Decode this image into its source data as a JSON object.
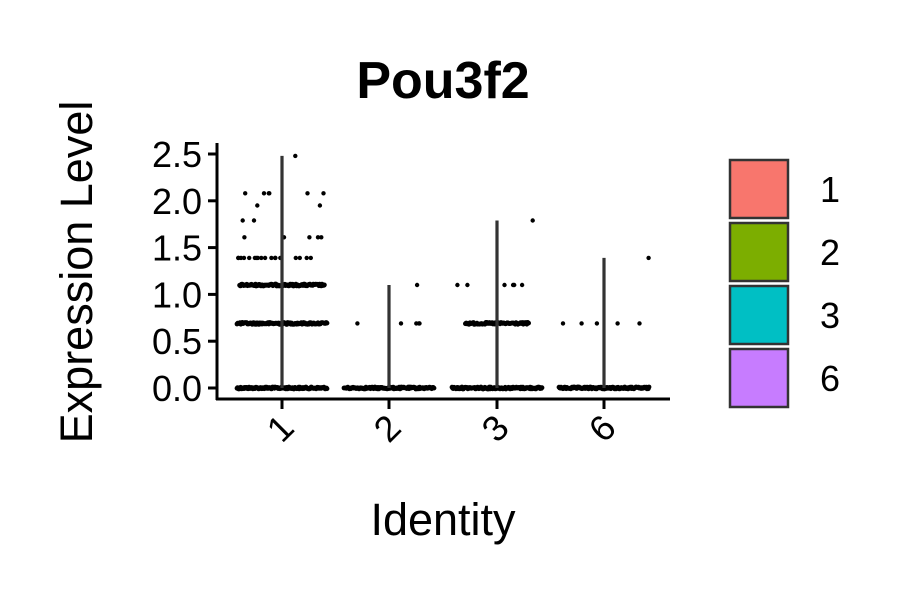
{
  "chart_data": {
    "type": "violin",
    "title": "Pou3f2",
    "xlabel": "Identity",
    "ylabel": "Expression Level",
    "categories": [
      "1",
      "2",
      "3",
      "6"
    ],
    "yticks": [
      "0.0",
      "0.5",
      "1.0",
      "1.5",
      "2.0",
      "2.5"
    ],
    "ylim": [
      0,
      2.5
    ],
    "legend": {
      "placement": "right",
      "entries": [
        {
          "label": "1",
          "color": "#F8766D"
        },
        {
          "label": "2",
          "color": "#7CAE00"
        },
        {
          "label": "3",
          "color": "#00BFC4"
        },
        {
          "label": "6",
          "color": "#C77CFF"
        }
      ]
    },
    "series": [
      {
        "category": "1",
        "max": 2.48,
        "levels": [
          {
            "y": 0.0,
            "points": 50
          },
          {
            "y": 0.69,
            "points": 40
          },
          {
            "y": 1.1,
            "points": 36
          },
          {
            "y": 1.39,
            "points": 18
          },
          {
            "y": 1.61,
            "points": 5
          },
          {
            "y": 1.79,
            "points": 2
          },
          {
            "y": 1.95,
            "points": 2
          },
          {
            "y": 2.08,
            "points": 6
          },
          {
            "y": 2.48,
            "points": 1
          }
        ]
      },
      {
        "category": "2",
        "max": 1.1,
        "levels": [
          {
            "y": 0.0,
            "points": 40
          },
          {
            "y": 0.69,
            "points": 5
          },
          {
            "y": 1.1,
            "points": 1
          }
        ]
      },
      {
        "category": "3",
        "max": 1.79,
        "levels": [
          {
            "y": 0.0,
            "points": 46
          },
          {
            "y": 0.69,
            "points": 24
          },
          {
            "y": 1.1,
            "points": 6
          },
          {
            "y": 1.79,
            "points": 1
          }
        ]
      },
      {
        "category": "6",
        "max": 1.39,
        "levels": [
          {
            "y": 0.0,
            "points": 46
          },
          {
            "y": 0.69,
            "points": 5
          },
          {
            "y": 1.39,
            "points": 1
          }
        ]
      }
    ]
  }
}
